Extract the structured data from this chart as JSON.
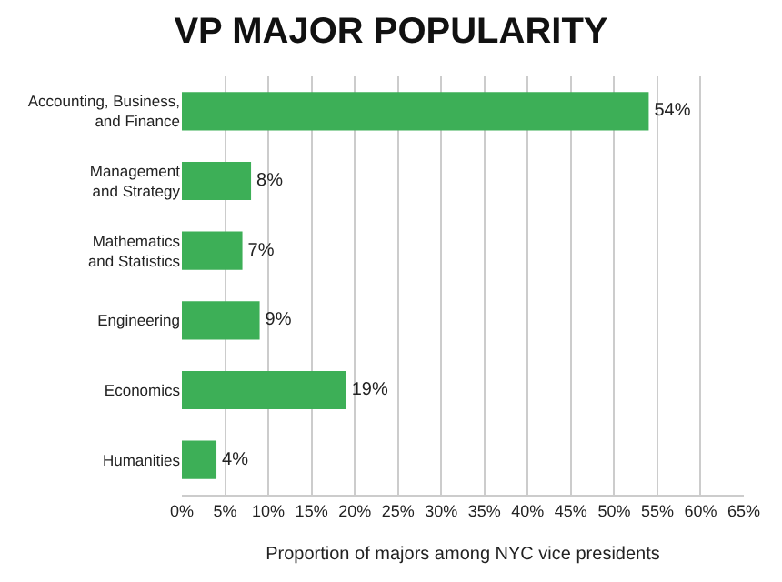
{
  "chart_data": {
    "type": "bar",
    "orientation": "horizontal",
    "title": "VP MAJOR POPULARITY",
    "xlabel": "Proportion of majors among NYC vice presidents",
    "categories": [
      "Accounting, Business,\nand Finance",
      "Management\nand Strategy",
      "Mathematics\nand Statistics",
      "Engineering",
      "Economics",
      "Humanities"
    ],
    "values": [
      54,
      8,
      7,
      9,
      19,
      4
    ],
    "value_labels": [
      "54%",
      "8%",
      "7%",
      "9%",
      "19%",
      "4%"
    ],
    "color": "#3daf57",
    "xlim": [
      0,
      65
    ],
    "xticks": [
      {
        "value": 0,
        "label": "0%"
      },
      {
        "value": 5,
        "label": "5%"
      },
      {
        "value": 10,
        "label": "10%"
      },
      {
        "value": 15,
        "label": "15%"
      },
      {
        "value": 20,
        "label": "20%"
      },
      {
        "value": 25,
        "label": "25%"
      },
      {
        "value": 30,
        "label": "30%"
      },
      {
        "value": 35,
        "label": "35%"
      },
      {
        "value": 40,
        "label": "40%"
      },
      {
        "value": 45,
        "label": "45%"
      },
      {
        "value": 50,
        "label": "50%"
      },
      {
        "value": 55,
        "label": "55%"
      },
      {
        "value": 60,
        "label": "60%"
      },
      {
        "value": 65,
        "label": "65%"
      }
    ],
    "grid": "x"
  }
}
